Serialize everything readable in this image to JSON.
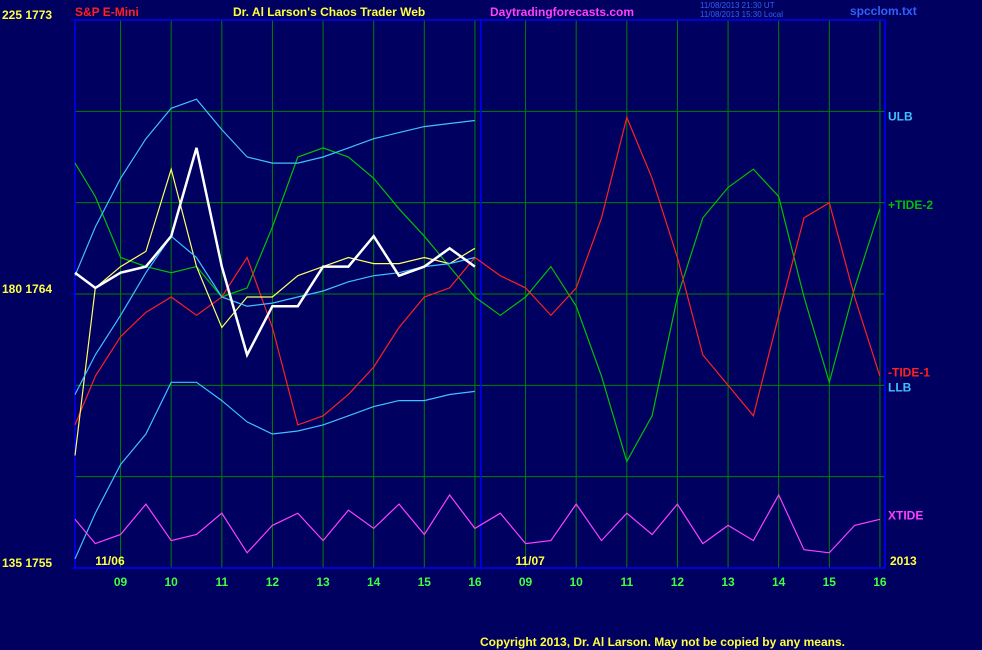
{
  "chart_data": {
    "type": "line",
    "instrument": "S&P E-Mini",
    "title": "Dr. Al Larson's Chaos Trader Web",
    "website": "Daytradingforecasts.com",
    "timestamp_ut": "11/08/2013 21:30 UT",
    "timestamp_local": "11/08/2013 15:30 Local",
    "file": "spcclom.txt",
    "year": "2013",
    "copyright": "Copyright 2013, Dr. Al Larson. May not be copied by any means.",
    "day_labels": [
      {
        "label": "11/06",
        "x": 8.5
      },
      {
        "label": "11/07",
        "x": 16.8
      }
    ],
    "x": [
      8.1,
      8.5,
      9,
      9.5,
      10,
      10.5,
      11,
      11.5,
      12,
      12.5,
      13,
      13.5,
      14,
      14.5,
      15,
      15.5,
      16,
      16.5,
      17,
      17.5,
      18,
      18.5,
      19,
      19.5,
      20,
      20.5,
      21,
      21.5,
      22,
      22.5,
      23,
      23.5,
      24
    ],
    "xlim": [
      8.1,
      24.1
    ],
    "xticks": [
      {
        "value": 9,
        "label": "09"
      },
      10,
      11,
      12,
      13,
      14,
      15,
      16,
      {
        "value": 17,
        "label": "09"
      },
      {
        "value": 18,
        "label": "10"
      },
      {
        "value": 19,
        "label": "11"
      },
      {
        "value": 20,
        "label": "12"
      },
      {
        "value": 21,
        "label": "13"
      },
      {
        "value": 22,
        "label": "14"
      },
      {
        "value": 23,
        "label": "15"
      },
      {
        "value": 24,
        "label": "16"
      }
    ],
    "ylim": [
      1755,
      1773
    ],
    "yticks": [
      {
        "value": 1773,
        "label": "225 1773"
      },
      {
        "value": 1764,
        "label": "180 1764"
      },
      {
        "value": 1755,
        "label": "135 1755"
      }
    ],
    "ygrid": [
      1758,
      1761,
      1764,
      1767,
      1770
    ],
    "grid": true,
    "series": [
      {
        "name": "+TIDE-2",
        "color": "#00c000",
        "values": [
          1768.3,
          1767.2,
          1765.2,
          1764.9,
          1764.7,
          1764.9,
          1763.9,
          1764.2,
          1766.2,
          1768.5,
          1768.8,
          1768.5,
          1767.8,
          1766.8,
          1765.9,
          1764.9,
          1763.9,
          1763.3,
          1763.9,
          1764.9,
          1763.6,
          1761.3,
          1758.5,
          1760.0,
          1763.9,
          1766.5,
          1767.5,
          1768.1,
          1767.2,
          1763.9,
          1761.1,
          1764.2,
          1766.8
        ]
      },
      {
        "name": "-TIDE-1",
        "color": "#ff2020",
        "values": [
          1759.7,
          1761.3,
          1762.6,
          1763.4,
          1763.9,
          1763.3,
          1763.9,
          1765.2,
          1762.9,
          1759.7,
          1760.0,
          1760.7,
          1761.6,
          1762.9,
          1763.9,
          1764.2,
          1765.2,
          1764.6,
          1764.2,
          1763.3,
          1764.2,
          1766.5,
          1769.8,
          1767.8,
          1765.2,
          1762.0,
          1761.0,
          1760.0,
          1763.3,
          1766.5,
          1767.0,
          1763.9,
          1761.3
        ]
      },
      {
        "color": "#ffff60",
        "values": [
          1758.7,
          1764.2,
          1764.9,
          1765.4,
          1768.1,
          1764.9,
          1762.9,
          1763.9,
          1763.9,
          1764.6,
          1764.9,
          1765.2,
          1765.0,
          1765.0,
          1765.2,
          1765.0,
          1765.5,
          null,
          null,
          null,
          null,
          null,
          null,
          null,
          null,
          null,
          null,
          null,
          null,
          null,
          null,
          null,
          null
        ]
      },
      {
        "color": "#40c0ff",
        "values": [
          1760.7,
          1762.0,
          1763.3,
          1764.7,
          1765.9,
          1765.2,
          1763.9,
          1763.6,
          1763.7,
          1763.9,
          1764.1,
          1764.4,
          1764.6,
          1764.7,
          1764.9,
          1765.0,
          1765.2,
          null,
          null,
          null,
          null,
          null,
          null,
          null,
          null,
          null,
          null,
          null,
          null,
          null,
          null,
          null,
          null
        ]
      },
      {
        "name": "ULB",
        "color": "#40c0ff",
        "values": [
          1764.6,
          1766.2,
          1767.8,
          1769.1,
          1770.1,
          1770.4,
          1769.4,
          1768.5,
          1768.3,
          1768.3,
          1768.5,
          1768.8,
          1769.1,
          1769.3,
          1769.5,
          1769.6,
          1769.7,
          null,
          null,
          null,
          null,
          null,
          null,
          null,
          null,
          null,
          null,
          null,
          null,
          null,
          null,
          null,
          null
        ]
      },
      {
        "name": "LLB",
        "color": "#40c0ff",
        "values": [
          1755.3,
          1756.8,
          1758.4,
          1759.4,
          1761.1,
          1761.1,
          1760.5,
          1759.8,
          1759.4,
          1759.5,
          1759.7,
          1760.0,
          1760.3,
          1760.5,
          1760.5,
          1760.7,
          1760.8,
          null,
          null,
          null,
          null,
          null,
          null,
          null,
          null,
          null,
          null,
          null,
          null,
          null,
          null,
          null,
          null
        ]
      },
      {
        "name": "XTIDE",
        "color": "#ff40ff",
        "values": [
          1756.6,
          1755.8,
          1756.1,
          1757.1,
          1755.9,
          1756.1,
          1756.8,
          1755.5,
          1756.4,
          1756.8,
          1755.9,
          1756.9,
          1756.3,
          1757.1,
          1756.1,
          1757.4,
          1756.3,
          1756.8,
          1755.8,
          1755.9,
          1757.1,
          1755.9,
          1756.8,
          1756.1,
          1757.1,
          1755.8,
          1756.4,
          1755.9,
          1757.4,
          1755.6,
          1755.5,
          1756.4,
          1756.6
        ]
      },
      {
        "color": "#ffffff",
        "values": [
          1764.7,
          1764.2,
          1764.7,
          1764.9,
          1765.9,
          1768.8,
          1764.9,
          1762.0,
          1763.6,
          1763.6,
          1764.9,
          1764.9,
          1765.9,
          1764.6,
          1764.9,
          1765.5,
          1764.9,
          null,
          null,
          null,
          null,
          null,
          null,
          null,
          null,
          null,
          null,
          null,
          null,
          null,
          null,
          null,
          null
        ]
      }
    ]
  }
}
